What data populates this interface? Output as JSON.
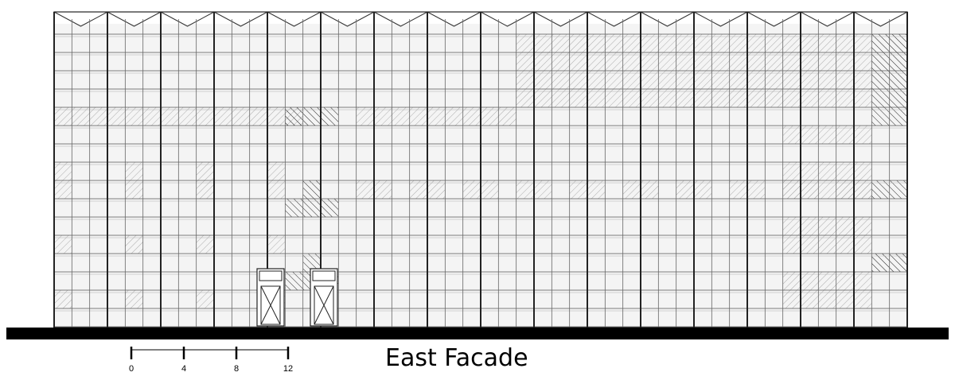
{
  "title": "East Facade",
  "scale_bar": {
    "labels": [
      "0",
      "4",
      "8",
      "12"
    ]
  }
}
